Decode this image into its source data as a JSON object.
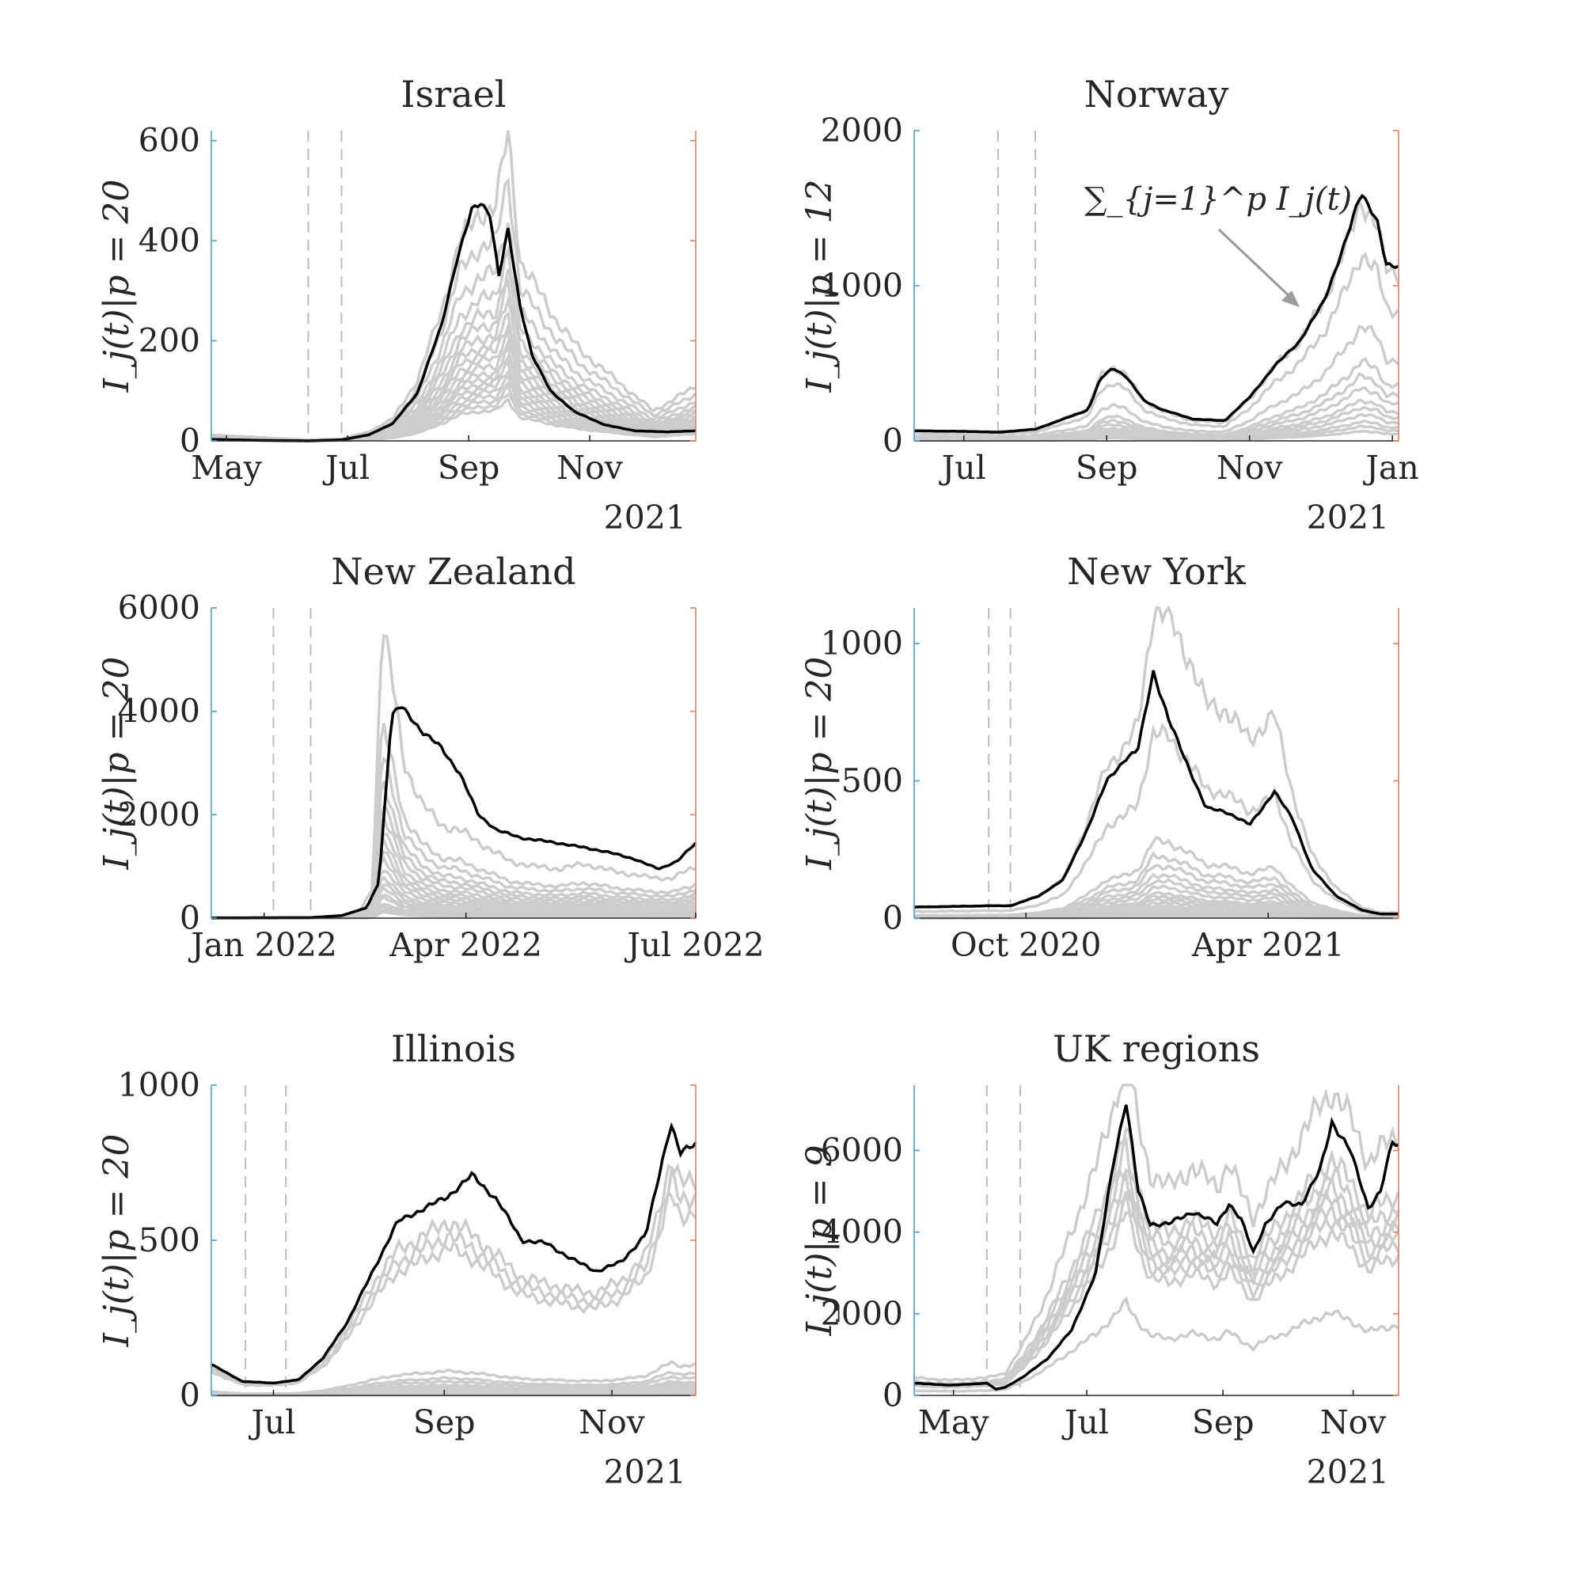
{
  "colors": {
    "total": "#000000",
    "component": "#cccccc",
    "left_axis": "#4f9fd0",
    "right_axis": "#e57f57",
    "vline": "#bdbdbd",
    "arrow": "#9a9a9a"
  },
  "chart_data": [
    {
      "type": "line",
      "title": "Israel",
      "ylabel": "I_j(t)|p = 20",
      "ylim": [
        0,
        620
      ],
      "yticks": [
        0,
        200,
        400,
        600
      ],
      "xrange": [
        0,
        8.0
      ],
      "xticks": [
        {
          "pos": 0.25,
          "label": "May"
        },
        {
          "pos": 2.25,
          "label": "Jul"
        },
        {
          "pos": 4.25,
          "label": "Sep"
        },
        {
          "pos": 6.25,
          "label": "Nov"
        }
      ],
      "year_label": "2021",
      "vlines": [
        1.6,
        2.15
      ],
      "n_components": 20,
      "total": {
        "x": [
          0,
          0.8,
          1.6,
          2.15,
          2.6,
          3.0,
          3.4,
          3.8,
          4.05,
          4.3,
          4.45,
          4.6,
          4.75,
          4.9,
          5.1,
          5.3,
          5.6,
          6.0,
          6.5,
          7.0,
          7.5,
          8.0
        ],
        "y": [
          3,
          1,
          0,
          2,
          12,
          35,
          95,
          230,
          360,
          460,
          475,
          455,
          330,
          420,
          270,
          170,
          100,
          58,
          32,
          20,
          18,
          20
        ]
      },
      "components": {
        "x": [
          0,
          1.6,
          2.15,
          2.6,
          3.0,
          3.4,
          3.8,
          4.1,
          4.4,
          4.7,
          4.9,
          5.1,
          5.4,
          5.7,
          6.1,
          6.5,
          7.0,
          7.3,
          7.6,
          8.0
        ],
        "y": [
          12,
          2,
          4,
          18,
          45,
          120,
          260,
          400,
          450,
          470,
          620,
          360,
          300,
          240,
          180,
          140,
          90,
          60,
          80,
          110
        ],
        "scales": [
          1.0,
          0.85,
          0.72,
          0.62,
          0.55,
          0.5,
          0.45,
          0.41,
          0.38,
          0.35,
          0.32,
          0.29,
          0.27,
          0.25,
          0.23,
          0.21,
          0.19,
          0.17,
          0.15,
          0.13
        ]
      }
    },
    {
      "type": "line",
      "title": "Norway",
      "ylabel": "I_j(t)|p = 12",
      "ylim": [
        0,
        2000
      ],
      "yticks": [
        0,
        1000,
        2000
      ],
      "xrange": [
        0,
        7.8
      ],
      "xticks": [
        {
          "pos": 0.8,
          "label": "Jul"
        },
        {
          "pos": 3.1,
          "label": "Sep"
        },
        {
          "pos": 5.4,
          "label": "Nov"
        },
        {
          "pos": 7.7,
          "label": "Jan"
        }
      ],
      "year_label": "2021",
      "vlines": [
        1.35,
        1.95
      ],
      "n_components": 12,
      "total": {
        "x": [
          0,
          1.0,
          1.35,
          1.95,
          2.4,
          2.8,
          3.0,
          3.2,
          3.4,
          3.7,
          4.0,
          4.5,
          5.0,
          5.4,
          5.8,
          6.2,
          6.6,
          7.0,
          7.2,
          7.45,
          7.6,
          7.8
        ],
        "y": [
          65,
          60,
          55,
          75,
          140,
          200,
          400,
          470,
          420,
          260,
          200,
          140,
          130,
          280,
          480,
          640,
          900,
          1350,
          1600,
          1430,
          1130,
          1120
        ]
      },
      "components": {
        "x": [
          0,
          1.0,
          1.95,
          2.4,
          2.8,
          3.0,
          3.2,
          3.4,
          3.7,
          4.0,
          4.5,
          5.0,
          5.4,
          5.8,
          6.2,
          6.6,
          7.0,
          7.2,
          7.45,
          7.6,
          7.8
        ],
        "y": [
          60,
          55,
          70,
          140,
          200,
          420,
          480,
          430,
          260,
          190,
          130,
          120,
          270,
          480,
          640,
          900,
          1300,
          1550,
          1400,
          1100,
          1070
        ],
        "scales": [
          1.0,
          0.78,
          0.48,
          0.33,
          0.27,
          0.22,
          0.17,
          0.14,
          0.11,
          0.08,
          0.06,
          0.04
        ]
      },
      "annotation": "∑_{j=1}^p I_j(t)"
    },
    {
      "type": "line",
      "title": "New Zealand",
      "ylabel": "I_j(t)|p = 20",
      "ylim": [
        0,
        6000
      ],
      "yticks": [
        0,
        2000,
        4000,
        6000
      ],
      "xrange": [
        0,
        7.8
      ],
      "xticks": [
        {
          "pos": 0.85,
          "label": "Jan 2022"
        },
        {
          "pos": 4.1,
          "label": "Apr 2022"
        },
        {
          "pos": 7.8,
          "label": "Jul 2022"
        }
      ],
      "vlines": [
        1.0,
        1.6
      ],
      "n_components": 20,
      "total": {
        "x": [
          0,
          1.6,
          2.1,
          2.5,
          2.7,
          2.9,
          3.05,
          3.2,
          3.4,
          3.7,
          4.0,
          4.3,
          4.6,
          5.0,
          5.6,
          6.3,
          6.8,
          7.2,
          7.5,
          7.8
        ],
        "y": [
          5,
          10,
          50,
          200,
          700,
          3900,
          4100,
          3900,
          3600,
          3300,
          2800,
          2000,
          1700,
          1550,
          1450,
          1300,
          1150,
          950,
          1100,
          1450
        ]
      },
      "components": {
        "x": [
          0,
          1.6,
          2.1,
          2.4,
          2.6,
          2.75,
          2.9,
          3.1,
          3.4,
          3.7,
          4.0,
          4.4,
          4.8,
          5.2,
          5.6,
          6.0,
          6.5,
          7.0,
          7.4,
          7.8
        ],
        "y": [
          5,
          10,
          40,
          150,
          600,
          5800,
          4700,
          3000,
          2200,
          1800,
          1700,
          1400,
          1100,
          1000,
          950,
          1050,
          900,
          800,
          760,
          1000
        ],
        "scales": [
          1.0,
          0.65,
          0.55,
          0.46,
          0.4,
          0.35,
          0.3,
          0.26,
          0.23,
          0.2,
          0.17,
          0.14,
          0.12,
          0.1,
          0.08,
          0.07,
          0.05,
          0.04,
          0.03,
          0.02
        ]
      }
    },
    {
      "type": "line",
      "title": "New York",
      "ylabel": "I_j(t)|p = 20",
      "ylim": [
        0,
        1130
      ],
      "yticks": [
        0,
        500,
        1000
      ],
      "xrange": [
        0,
        7.8
      ],
      "xticks": [
        {
          "pos": 1.8,
          "label": "Oct 2020"
        },
        {
          "pos": 5.7,
          "label": "Apr 2021"
        }
      ],
      "vlines": [
        1.2,
        1.55
      ],
      "n_components": 20,
      "total": {
        "x": [
          0,
          1.2,
          1.55,
          2.0,
          2.4,
          2.8,
          3.1,
          3.4,
          3.6,
          3.85,
          4.1,
          4.4,
          4.7,
          5.0,
          5.4,
          5.8,
          6.1,
          6.4,
          6.8,
          7.2,
          7.5,
          7.8
        ],
        "y": [
          40,
          45,
          45,
          80,
          140,
          330,
          500,
          580,
          610,
          900,
          720,
          560,
          400,
          390,
          340,
          460,
          360,
          180,
          80,
          30,
          15,
          15
        ]
      },
      "components": {
        "x": [
          0,
          1.2,
          1.55,
          2.0,
          2.4,
          2.8,
          3.1,
          3.4,
          3.6,
          3.85,
          4.1,
          4.4,
          4.7,
          5.0,
          5.4,
          5.8,
          6.1,
          6.4,
          6.8,
          7.2,
          7.5,
          7.8
        ],
        "y": [
          40,
          45,
          45,
          80,
          140,
          350,
          560,
          620,
          700,
          1120,
          1100,
          960,
          780,
          760,
          650,
          740,
          450,
          230,
          110,
          40,
          20,
          20
        ],
        "scales": [
          1.0,
          0.6,
          0.25,
          0.2,
          0.17,
          0.14,
          0.12,
          0.1,
          0.08,
          0.07,
          0.06,
          0.05,
          0.04,
          0.035,
          0.03,
          0.025,
          0.02,
          0.015,
          0.01,
          0.005
        ]
      }
    },
    {
      "type": "line",
      "title": "Illinois",
      "ylabel": "I_j(t)|p = 20",
      "ylim": [
        0,
        1000
      ],
      "yticks": [
        0,
        500,
        1000
      ],
      "xrange": [
        0,
        7.8
      ],
      "xticks": [
        {
          "pos": 1.0,
          "label": "Jul"
        },
        {
          "pos": 3.75,
          "label": "Sep"
        },
        {
          "pos": 6.45,
          "label": "Nov"
        }
      ],
      "year_label": "2021",
      "vlines": [
        0.55,
        1.2
      ],
      "n_components": 20,
      "total": {
        "x": [
          0,
          0.5,
          1.0,
          1.4,
          1.8,
          2.2,
          2.6,
          3.0,
          3.4,
          3.8,
          4.2,
          4.6,
          5.0,
          5.4,
          5.8,
          6.2,
          6.6,
          7.0,
          7.2,
          7.4,
          7.55,
          7.8
        ],
        "y": [
          100,
          45,
          40,
          50,
          120,
          240,
          400,
          560,
          600,
          640,
          710,
          630,
          500,
          490,
          440,
          400,
          430,
          520,
          700,
          880,
          780,
          810
        ]
      },
      "components": {
        "x": [
          0,
          0.5,
          1.0,
          1.4,
          1.8,
          2.2,
          2.6,
          3.0,
          3.4,
          3.8,
          4.2,
          4.6,
          5.0,
          5.4,
          5.8,
          6.2,
          6.6,
          7.0,
          7.2,
          7.4,
          7.55,
          7.8
        ],
        "y": [
          90,
          40,
          38,
          48,
          110,
          220,
          360,
          470,
          510,
          560,
          520,
          450,
          380,
          360,
          340,
          330,
          370,
          450,
          600,
          760,
          680,
          700
        ],
        "scales": [
          1.0,
          0.92,
          0.85,
          0.14,
          0.1,
          0.08,
          0.06,
          0.05,
          0.04,
          0.035,
          0.03,
          0.025,
          0.02,
          0.015,
          0.012,
          0.01,
          0.008,
          0.006,
          0.004,
          0.002
        ]
      }
    },
    {
      "type": "line",
      "title": "UK regions",
      "ylabel": "I_j(t)|p = 9",
      "ylim": [
        0,
        7600
      ],
      "yticks": [
        0,
        2000,
        4000,
        6000
      ],
      "xrange": [
        0,
        8.0
      ],
      "xticks": [
        {
          "pos": 0.65,
          "label": "May"
        },
        {
          "pos": 2.85,
          "label": "Jul"
        },
        {
          "pos": 5.1,
          "label": "Sep"
        },
        {
          "pos": 7.25,
          "label": "Nov"
        }
      ],
      "year_label": "2021",
      "vlines": [
        1.2,
        1.75
      ],
      "n_components": 9,
      "total": {
        "x": [
          0,
          0.6,
          1.2,
          1.35,
          1.5,
          1.8,
          2.2,
          2.6,
          3.0,
          3.3,
          3.5,
          3.7,
          3.9,
          4.2,
          4.6,
          5.0,
          5.2,
          5.4,
          5.6,
          5.8,
          6.1,
          6.4,
          6.7,
          6.9,
          7.2,
          7.5,
          7.7,
          7.9,
          8.0
        ],
        "y": [
          300,
          250,
          300,
          150,
          200,
          450,
          900,
          1600,
          3000,
          5800,
          7200,
          5000,
          4200,
          4200,
          4500,
          4200,
          4700,
          4300,
          3500,
          4200,
          4700,
          4700,
          5500,
          6700,
          6000,
          4600,
          5000,
          6200,
          6100
        ]
      },
      "components": {
        "x": [
          0,
          0.6,
          1.2,
          1.5,
          1.8,
          2.2,
          2.6,
          3.0,
          3.3,
          3.5,
          3.7,
          3.9,
          4.2,
          4.6,
          5.0,
          5.2,
          5.4,
          5.6,
          5.8,
          6.1,
          6.4,
          6.7,
          6.9,
          7.2,
          7.5,
          7.7,
          8.0
        ],
        "y": [
          280,
          240,
          280,
          350,
          800,
          1600,
          2600,
          3600,
          4600,
          5400,
          4300,
          3500,
          3300,
          3600,
          3300,
          3700,
          3200,
          2800,
          3200,
          3600,
          4100,
          4600,
          4800,
          4400,
          3700,
          3900,
          4100
        ],
        "scales": [
          1.55,
          1.2,
          1.12,
          1.05,
          1.0,
          0.95,
          0.9,
          0.83,
          0.42
        ]
      }
    }
  ]
}
